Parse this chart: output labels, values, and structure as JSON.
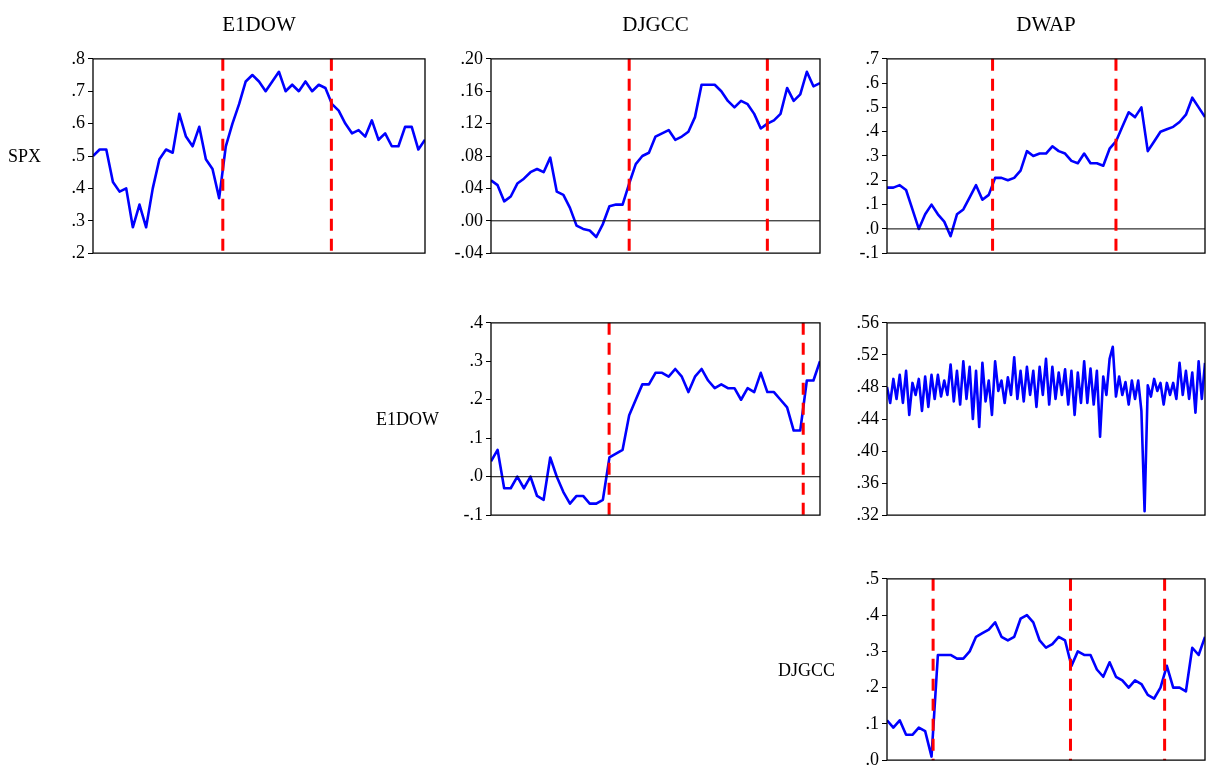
{
  "chart_data": [
    {
      "type": "line",
      "title": "E1DOW",
      "ylabel": "SPX",
      "tick_labels": "y",
      "grid": false,
      "ylim": [
        0.2,
        0.8
      ],
      "yticks": [
        {
          "value": 0.2,
          "label": ".2"
        },
        {
          "value": 0.3,
          "label": ".3"
        },
        {
          "value": 0.4,
          "label": ".4"
        },
        {
          "value": 0.5,
          "label": ".5"
        },
        {
          "value": 0.6,
          "label": ".6"
        },
        {
          "value": 0.7,
          "label": ".7"
        },
        {
          "value": 0.8,
          "label": ".8"
        }
      ],
      "categories": [
        null,
        null,
        null,
        null,
        null,
        null,
        null,
        null,
        null,
        null,
        null,
        null,
        null,
        null,
        null,
        null,
        null,
        null,
        null,
        null,
        null,
        null,
        null,
        null,
        null,
        null,
        null,
        null,
        null,
        null,
        null,
        null,
        null,
        null,
        null,
        null,
        null,
        null,
        null,
        null,
        null,
        null,
        null,
        null,
        null,
        null,
        null,
        null,
        null,
        null,
        null
      ],
      "series": [
        {
          "color": "#0000ff",
          "values": [
            0.5,
            0.52,
            0.52,
            0.42,
            0.39,
            0.4,
            0.28,
            0.35,
            0.28,
            0.4,
            0.49,
            0.52,
            0.51,
            0.63,
            0.56,
            0.53,
            0.59,
            0.49,
            0.46,
            0.37,
            0.53,
            0.6,
            0.66,
            0.73,
            0.75,
            0.73,
            0.7,
            0.73,
            0.76,
            0.7,
            0.72,
            0.7,
            0.73,
            0.7,
            0.72,
            0.71,
            0.66,
            0.64,
            0.6,
            0.57,
            0.58,
            0.56,
            0.61,
            0.55,
            0.57,
            0.53,
            0.53,
            0.59,
            0.59,
            0.52,
            0.55
          ]
        }
      ]
    },
    {
      "type": "line",
      "title": "DJGCC",
      "tick_labels": "y",
      "grid": false,
      "ylim": [
        -0.04,
        0.2
      ],
      "yticks": [
        {
          "value": -0.04,
          "label": "-.04"
        },
        {
          "value": 0,
          "label": ".00"
        },
        {
          "value": 0.04,
          "label": ".04"
        },
        {
          "value": 0.08,
          "label": ".08"
        },
        {
          "value": 0.12,
          "label": ".12"
        },
        {
          "value": 0.16,
          "label": ".16"
        },
        {
          "value": 0.2,
          "label": ".20"
        }
      ],
      "ref_lines": [
        {
          "axis": "y",
          "value": 0,
          "color": "#000000",
          "line_style": "solid"
        }
      ],
      "categories": [
        null,
        null,
        null,
        null,
        null,
        null,
        null,
        null,
        null,
        null,
        null,
        null,
        null,
        null,
        null,
        null,
        null,
        null,
        null,
        null,
        null,
        null,
        null,
        null,
        null,
        null,
        null,
        null,
        null,
        null,
        null,
        null,
        null,
        null,
        null,
        null,
        null,
        null,
        null,
        null,
        null,
        null,
        null,
        null,
        null,
        null,
        null,
        null,
        null,
        null,
        null
      ],
      "series": [
        {
          "color": "#0000ff",
          "values": [
            0.05,
            0.044,
            0.024,
            0.03,
            0.046,
            0.052,
            0.06,
            0.064,
            0.06,
            0.078,
            0.036,
            0.032,
            0.016,
            -0.006,
            -0.01,
            -0.012,
            -0.02,
            -0.004,
            0.018,
            0.02,
            0.02,
            0.046,
            0.07,
            0.08,
            0.084,
            0.104,
            0.108,
            0.112,
            0.1,
            0.104,
            0.11,
            0.128,
            0.168,
            0.168,
            0.168,
            0.16,
            0.148,
            0.14,
            0.148,
            0.144,
            0.132,
            0.114,
            0.12,
            0.124,
            0.132,
            0.164,
            0.148,
            0.156,
            0.184,
            0.166,
            0.17
          ]
        }
      ]
    },
    {
      "type": "line",
      "title": "DWAP",
      "tick_labels": "y",
      "grid": false,
      "ylim": [
        -0.1,
        0.7
      ],
      "yticks": [
        {
          "value": -0.1,
          "label": "-.1"
        },
        {
          "value": 0,
          "label": ".0"
        },
        {
          "value": 0.1,
          "label": ".1"
        },
        {
          "value": 0.2,
          "label": ".2"
        },
        {
          "value": 0.3,
          "label": ".3"
        },
        {
          "value": 0.4,
          "label": ".4"
        },
        {
          "value": 0.5,
          "label": ".5"
        },
        {
          "value": 0.6,
          "label": ".6"
        },
        {
          "value": 0.7,
          "label": ".7"
        }
      ],
      "ref_lines": [
        {
          "axis": "y",
          "value": 0,
          "color": "#000000",
          "line_style": "solid"
        }
      ],
      "categories": [
        null,
        null,
        null,
        null,
        null,
        null,
        null,
        null,
        null,
        null,
        null,
        null,
        null,
        null,
        null,
        null,
        null,
        null,
        null,
        null,
        null,
        null,
        null,
        null,
        null,
        null,
        null,
        null,
        null,
        null,
        null,
        null,
        null,
        null,
        null,
        null,
        null,
        null,
        null,
        null,
        null,
        null,
        null,
        null,
        null,
        null,
        null,
        null,
        null,
        null,
        null
      ],
      "series": [
        {
          "color": "#0000ff",
          "values": [
            0.17,
            0.17,
            0.18,
            0.16,
            0.08,
            0.0,
            0.06,
            0.1,
            0.06,
            0.03,
            -0.03,
            0.06,
            0.08,
            0.13,
            0.18,
            0.12,
            0.14,
            0.21,
            0.21,
            0.2,
            0.21,
            0.24,
            0.32,
            0.3,
            0.31,
            0.31,
            0.34,
            0.32,
            0.31,
            0.28,
            0.27,
            0.31,
            0.27,
            0.27,
            0.26,
            0.33,
            0.36,
            0.42,
            0.48,
            0.46,
            0.5,
            0.32,
            0.36,
            0.4,
            0.41,
            0.42,
            0.44,
            0.47,
            0.54,
            0.5,
            0.46
          ]
        }
      ]
    },
    {
      "type": "line",
      "ylabel": "E1DOW",
      "tick_labels": "y",
      "grid": false,
      "ylim": [
        -0.1,
        0.4
      ],
      "yticks": [
        {
          "value": -0.1,
          "label": "-.1"
        },
        {
          "value": 0,
          "label": ".0"
        },
        {
          "value": 0.1,
          "label": ".1"
        },
        {
          "value": 0.2,
          "label": ".2"
        },
        {
          "value": 0.3,
          "label": ".3"
        },
        {
          "value": 0.4,
          "label": ".4"
        }
      ],
      "ref_lines": [
        {
          "axis": "y",
          "value": 0,
          "color": "#000000",
          "line_style": "solid"
        }
      ],
      "categories": [
        null,
        null,
        null,
        null,
        null,
        null,
        null,
        null,
        null,
        null,
        null,
        null,
        null,
        null,
        null,
        null,
        null,
        null,
        null,
        null,
        null,
        null,
        null,
        null,
        null,
        null,
        null,
        null,
        null,
        null,
        null,
        null,
        null,
        null,
        null,
        null,
        null,
        null,
        null,
        null,
        null,
        null,
        null,
        null,
        null,
        null,
        null,
        null,
        null,
        null,
        null
      ],
      "series": [
        {
          "color": "#0000ff",
          "values": [
            0.04,
            0.07,
            -0.03,
            -0.03,
            0.0,
            -0.03,
            0.0,
            -0.05,
            -0.06,
            0.05,
            0.0,
            -0.04,
            -0.07,
            -0.05,
            -0.05,
            -0.07,
            -0.07,
            -0.06,
            0.05,
            0.06,
            0.07,
            0.16,
            0.2,
            0.24,
            0.24,
            0.27,
            0.27,
            0.26,
            0.28,
            0.26,
            0.22,
            0.26,
            0.28,
            0.25,
            0.23,
            0.24,
            0.23,
            0.23,
            0.2,
            0.23,
            0.22,
            0.27,
            0.22,
            0.22,
            0.2,
            0.18,
            0.12,
            0.12,
            0.25,
            0.25,
            0.3
          ]
        }
      ]
    },
    {
      "type": "line",
      "tick_labels": "y",
      "grid": false,
      "ylim": [
        0.32,
        0.56
      ],
      "yticks": [
        {
          "value": 0.32,
          "label": ".32"
        },
        {
          "value": 0.36,
          "label": ".36"
        },
        {
          "value": 0.4,
          "label": ".40"
        },
        {
          "value": 0.44,
          "label": ".44"
        },
        {
          "value": 0.48,
          "label": ".48"
        },
        {
          "value": 0.52,
          "label": ".52"
        },
        {
          "value": 0.56,
          "label": ".56"
        }
      ],
      "categories": [
        null,
        null,
        null,
        null,
        null,
        null,
        null,
        null,
        null,
        null,
        null,
        null,
        null,
        null,
        null,
        null,
        null,
        null,
        null,
        null,
        null,
        null,
        null,
        null,
        null,
        null,
        null,
        null,
        null,
        null,
        null,
        null,
        null,
        null,
        null,
        null,
        null,
        null,
        null,
        null,
        null,
        null,
        null,
        null,
        null,
        null,
        null,
        null,
        null,
        null,
        null,
        null,
        null,
        null,
        null,
        null,
        null,
        null,
        null,
        null,
        null,
        null,
        null,
        null,
        null,
        null,
        null,
        null,
        null,
        null,
        null,
        null,
        null,
        null,
        null,
        null,
        null,
        null,
        null,
        null,
        null,
        null,
        null,
        null,
        null,
        null,
        null,
        null,
        null,
        null,
        null,
        null,
        null,
        null,
        null,
        null,
        null,
        null,
        null,
        null,
        null
      ],
      "series": [
        {
          "color": "#0000ff",
          "values": [
            0.48,
            0.46,
            0.49,
            0.465,
            0.495,
            0.46,
            0.5,
            0.445,
            0.485,
            0.47,
            0.49,
            0.45,
            0.493,
            0.455,
            0.495,
            0.465,
            0.495,
            0.468,
            0.488,
            0.47,
            0.508,
            0.462,
            0.5,
            0.458,
            0.512,
            0.465,
            0.505,
            0.44,
            0.5,
            0.43,
            0.51,
            0.462,
            0.488,
            0.445,
            0.512,
            0.475,
            0.488,
            0.46,
            0.492,
            0.47,
            0.517,
            0.465,
            0.5,
            0.462,
            0.505,
            0.47,
            0.5,
            0.455,
            0.505,
            0.47,
            0.515,
            0.458,
            0.505,
            0.465,
            0.498,
            0.47,
            0.502,
            0.458,
            0.5,
            0.445,
            0.498,
            0.46,
            0.512,
            0.46,
            0.503,
            0.458,
            0.5,
            0.418,
            0.493,
            0.47,
            0.515,
            0.53,
            0.468,
            0.493,
            0.47,
            0.486,
            0.458,
            0.488,
            0.465,
            0.488,
            0.45,
            0.325,
            0.482,
            0.468,
            0.49,
            0.475,
            0.485,
            0.458,
            0.485,
            0.47,
            0.485,
            0.465,
            0.51,
            0.47,
            0.5,
            0.465,
            0.498,
            0.448,
            0.512,
            0.465,
            0.51
          ]
        }
      ]
    },
    {
      "type": "line",
      "ylabel": "DJGCC",
      "tick_labels": "y",
      "grid": false,
      "ylim": [
        0,
        0.5
      ],
      "yticks": [
        {
          "value": 0,
          "label": ".0"
        },
        {
          "value": 0.1,
          "label": ".1"
        },
        {
          "value": 0.2,
          "label": ".2"
        },
        {
          "value": 0.3,
          "label": ".3"
        },
        {
          "value": 0.4,
          "label": ".4"
        },
        {
          "value": 0.5,
          "label": ".5"
        }
      ],
      "categories": [
        null,
        null,
        null,
        null,
        null,
        null,
        null,
        null,
        null,
        null,
        null,
        null,
        null,
        null,
        null,
        null,
        null,
        null,
        null,
        null,
        null,
        null,
        null,
        null,
        null,
        null,
        null,
        null,
        null,
        null,
        null,
        null,
        null,
        null,
        null,
        null,
        null,
        null,
        null,
        null,
        null,
        null,
        null,
        null,
        null,
        null,
        null,
        null,
        null,
        null,
        null
      ],
      "series": [
        {
          "color": "#0000ff",
          "values": [
            0.11,
            0.09,
            0.11,
            0.07,
            0.07,
            0.09,
            0.08,
            0.01,
            0.29,
            0.29,
            0.29,
            0.28,
            0.28,
            0.3,
            0.34,
            0.35,
            0.36,
            0.38,
            0.34,
            0.33,
            0.34,
            0.39,
            0.4,
            0.38,
            0.33,
            0.31,
            0.32,
            0.34,
            0.33,
            0.26,
            0.3,
            0.29,
            0.29,
            0.25,
            0.23,
            0.27,
            0.23,
            0.22,
            0.2,
            0.22,
            0.21,
            0.18,
            0.17,
            0.2,
            0.26,
            0.2,
            0.2,
            0.19,
            0.31,
            0.29,
            0.34
          ]
        }
      ]
    }
  ]
}
